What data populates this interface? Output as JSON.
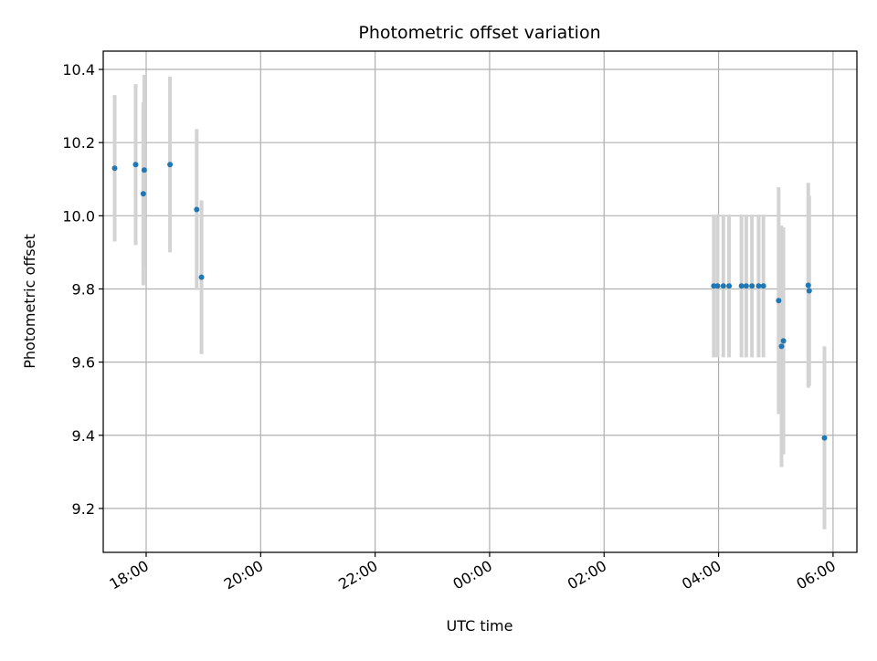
{
  "chart_data": {
    "type": "scatter",
    "title": "Photometric offset variation",
    "xlabel": "UTC time",
    "ylabel": "Photometric offset",
    "x_axis": {
      "type": "time",
      "range": [
        "17:15",
        "06:25"
      ],
      "day_boundary": "00:00",
      "ticks": [
        "18:00",
        "20:00",
        "22:00",
        "00:00",
        "02:00",
        "04:00",
        "06:00"
      ]
    },
    "ylim": [
      9.08,
      10.45
    ],
    "yticks": [
      "9.2",
      "9.4",
      "9.6",
      "9.8",
      "10.0",
      "10.2",
      "10.4"
    ],
    "grid": true,
    "colors": {
      "points": "#1f77b4",
      "errorbars": "#d3d3d3",
      "grid": "#b0b0b0"
    },
    "points": [
      {
        "x": "17:27",
        "y": 10.13,
        "err": 0.2
      },
      {
        "x": "17:49",
        "y": 10.14,
        "err": 0.22
      },
      {
        "x": "17:57",
        "y": 10.06,
        "err": 0.25
      },
      {
        "x": "17:58",
        "y": 10.125,
        "err": 0.26
      },
      {
        "x": "18:25",
        "y": 10.14,
        "err": 0.24
      },
      {
        "x": "18:53",
        "y": 10.017,
        "err": 0.22
      },
      {
        "x": "18:58",
        "y": 9.832,
        "err": 0.21
      },
      {
        "x": "03:55",
        "y": 9.808,
        "err": 0.195
      },
      {
        "x": "03:59",
        "y": 9.808,
        "err": 0.195
      },
      {
        "x": "04:05",
        "y": 9.808,
        "err": 0.195
      },
      {
        "x": "04:11",
        "y": 9.808,
        "err": 0.195
      },
      {
        "x": "04:24",
        "y": 9.808,
        "err": 0.195
      },
      {
        "x": "04:29",
        "y": 9.808,
        "err": 0.195
      },
      {
        "x": "04:35",
        "y": 9.808,
        "err": 0.195
      },
      {
        "x": "04:42",
        "y": 9.808,
        "err": 0.195
      },
      {
        "x": "04:47",
        "y": 9.808,
        "err": 0.195
      },
      {
        "x": "05:03",
        "y": 9.768,
        "err": 0.31
      },
      {
        "x": "05:06",
        "y": 9.643,
        "err": 0.33
      },
      {
        "x": "05:08",
        "y": 9.658,
        "err": 0.31
      },
      {
        "x": "05:34",
        "y": 9.81,
        "err": 0.28
      },
      {
        "x": "05:35",
        "y": 9.795,
        "err": 0.26
      },
      {
        "x": "05:51",
        "y": 9.393,
        "err": 0.25
      }
    ]
  }
}
